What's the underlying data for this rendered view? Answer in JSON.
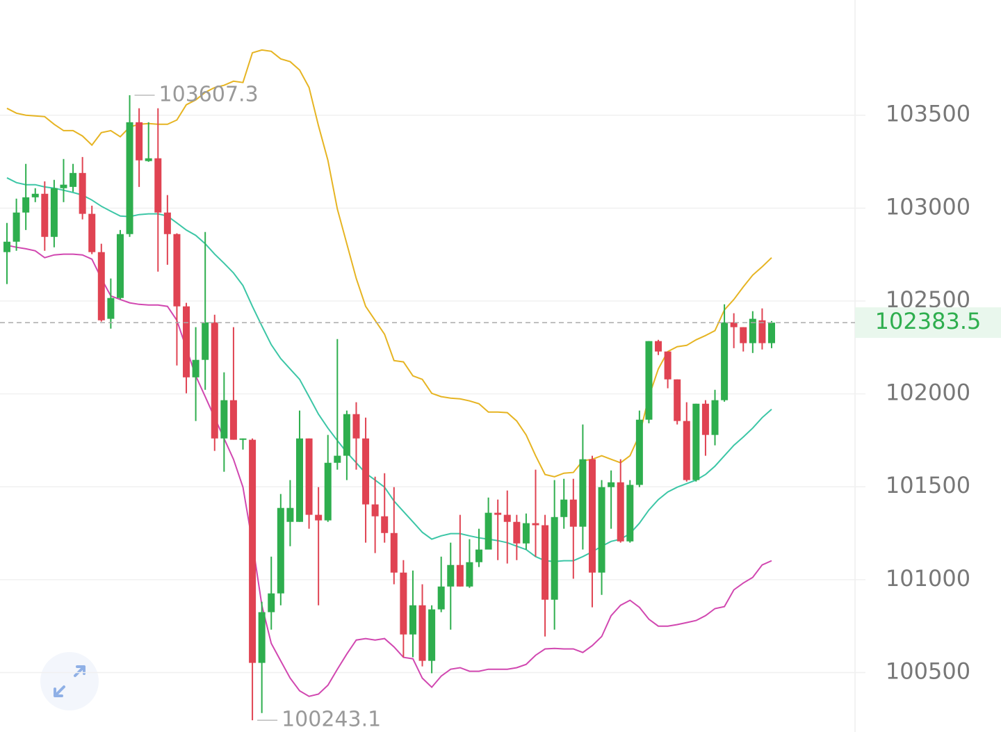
{
  "chart_data": {
    "type": "candlestick",
    "up_color": "#2eae4e",
    "down_color": "#e04352",
    "open": [
      102763,
      102819,
      102976,
      103058,
      103077,
      102845,
      103107,
      103114,
      103189,
      102969,
      102763,
      102404,
      102516,
      102860,
      103462,
      103253,
      103268,
      102976,
      102860,
      102471,
      102089,
      102183,
      102385,
      101760,
      101966,
      101753,
      101753,
      100552,
      100825,
      100926,
      101311,
      101311,
      101760,
      101349,
      101319,
      101629,
      101667,
      101891,
      101760,
      101405,
      101341,
      101251,
      101038,
      100705,
      100862,
      100563,
      100840,
      100963,
      101079,
      100963,
      101094,
      101162,
      101360,
      101349,
      101311,
      101195,
      101304,
      101293,
      100892,
      101337,
      101431,
      101285,
      101648,
      101038,
      101498,
      101524,
      101206,
      101510,
      101861,
      102284,
      102228,
      102078,
      101854,
      101536,
      101947,
      101779,
      101966,
      102385,
      102359,
      102273,
      102396,
      102273
    ],
    "high": [
      102920,
      103051,
      103238,
      103107,
      103144,
      103152,
      103264,
      103238,
      103275,
      103013,
      102808,
      102621,
      102882,
      103607.3,
      103537,
      103462,
      103537,
      103070,
      102864,
      102490,
      102359,
      102871,
      102426,
      102116,
      102359,
      101760,
      101760,
      100881,
      101124,
      101461,
      101536,
      101910,
      101760,
      101498,
      101779,
      102295,
      101910,
      101955,
      101872,
      101554,
      101573,
      101498,
      101105,
      101049,
      100975,
      100862,
      101124,
      101199,
      101349,
      101218,
      101274,
      101442,
      101431,
      101480,
      101349,
      101356,
      101592,
      101349,
      101536,
      101543,
      101543,
      101835,
      101667,
      101536,
      101588,
      101648,
      101536,
      101910,
      102284,
      102291,
      102228,
      102078,
      101955,
      101947,
      101966,
      102022,
      102482,
      102434,
      102359,
      102445,
      102460,
      102392
    ],
    "low": [
      102591,
      102770,
      102882,
      103032,
      102770,
      102789,
      103032,
      103088,
      102939,
      102752,
      102389,
      102351,
      102509,
      102845,
      103114,
      103249,
      102658,
      102695,
      102153,
      102003,
      101854,
      102022,
      101693,
      101581,
      101753,
      101700,
      100243.1,
      100282,
      100731,
      100862,
      101180,
      101311,
      101274,
      100862,
      101311,
      101592,
      101536,
      101592,
      101199,
      101143,
      101199,
      100975,
      100582,
      100582,
      100533,
      100496,
      100825,
      100731,
      100963,
      100956,
      101068,
      101162,
      101105,
      101087,
      101105,
      101162,
      101124,
      100694,
      100731,
      101274,
      101005,
      101162,
      100851,
      100918,
      101274,
      101199,
      101199,
      101498,
      101842,
      102209,
      102030,
      101835,
      101528,
      101528,
      101667,
      101723,
      101958,
      102246,
      102228,
      102220,
      102239,
      102246
    ],
    "close": [
      102819,
      102976,
      103058,
      103077,
      102845,
      103107,
      103126,
      103189,
      102969,
      102763,
      102396,
      102516,
      102860,
      103462,
      103257,
      103268,
      102976,
      102860,
      102471,
      102089,
      102183,
      102385,
      101760,
      101966,
      101753,
      101760,
      100552,
      100825,
      100926,
      101386,
      101386,
      101760,
      101349,
      101319,
      101629,
      101667,
      101891,
      101760,
      101405,
      101341,
      101251,
      101038,
      100705,
      100862,
      100563,
      100840,
      100963,
      101079,
      100963,
      101094,
      101162,
      101360,
      101349,
      101311,
      101195,
      101304,
      101293,
      100892,
      101337,
      101431,
      101285,
      101648,
      101038,
      101498,
      101524,
      101206,
      101510,
      101861,
      102284,
      102228,
      102078,
      101854,
      101536,
      101947,
      101779,
      101966,
      102385,
      102359,
      102273,
      102404,
      102273,
      102383.5
    ],
    "bands": [
      {
        "color": "#e6b422",
        "values": [
          103537,
          103511,
          103500,
          103496,
          103492,
          103451,
          103417,
          103417,
          103388,
          103339,
          103406,
          103417,
          103384,
          103436,
          103451,
          103455,
          103451,
          103451,
          103474,
          103556,
          103582,
          103623,
          103649,
          103661,
          103683,
          103676,
          103836,
          103851,
          103844,
          103803,
          103788,
          103743,
          103649,
          103444,
          103257,
          102995,
          102808,
          102621,
          102471,
          102396,
          102321,
          102179,
          102172,
          102097,
          102078,
          102003,
          101985,
          101977,
          101973,
          101962,
          101947,
          101902,
          101902,
          101899,
          101854,
          101779,
          101667,
          101566,
          101554,
          101573,
          101577,
          101640,
          101648,
          101667,
          101648,
          101629,
          101667,
          101779,
          101985,
          102134,
          102228,
          102254,
          102261,
          102291,
          102314,
          102340,
          102452,
          102508,
          102576,
          102639,
          102684,
          102733
        ]
      },
      {
        "color": "#3cc6a6",
        "values": [
          103163,
          103137,
          103126,
          103126,
          103114,
          103107,
          103096,
          103084,
          103070,
          103043,
          103010,
          102983,
          102957,
          102954,
          102965,
          102969,
          102969,
          102957,
          102920,
          102882,
          102853,
          102808,
          102752,
          102703,
          102651,
          102583,
          102471,
          102366,
          102265,
          102190,
          102134,
          102078,
          101985,
          101891,
          101816,
          101749,
          101685,
          101629,
          101573,
          101536,
          101498,
          101423,
          101367,
          101311,
          101255,
          101218,
          101236,
          101248,
          101248,
          101236,
          101225,
          101218,
          101210,
          101199,
          101180,
          101162,
          101124,
          101102,
          101098,
          101102,
          101102,
          101124,
          101150,
          101180,
          101206,
          101218,
          101248,
          101304,
          101375,
          101431,
          101472,
          101498,
          101517,
          101536,
          101566,
          101611,
          101667,
          101723,
          101768,
          101816,
          101872,
          101917
        ]
      },
      {
        "color": "#d147b0",
        "values": [
          102800,
          102789,
          102781,
          102770,
          102733,
          102748,
          102752,
          102752,
          102748,
          102725,
          102621,
          102527,
          102508,
          102490,
          102482,
          102478,
          102478,
          102471,
          102396,
          102246,
          102097,
          101985,
          101872,
          101760,
          101648,
          101498,
          101199,
          100862,
          100657,
          100563,
          100470,
          100402,
          100372,
          100384,
          100432,
          100518,
          100600,
          100675,
          100683,
          100675,
          100683,
          100638,
          100582,
          100574,
          100470,
          100421,
          100481,
          100518,
          100526,
          100507,
          100507,
          100518,
          100518,
          100518,
          100526,
          100544,
          100593,
          100627,
          100630,
          100627,
          100627,
          100608,
          100645,
          100694,
          100806,
          100862,
          100889,
          100851,
          100787,
          100750,
          100750,
          100758,
          100769,
          100780,
          100806,
          100844,
          100855,
          100945,
          100982,
          101012,
          101079,
          101102
        ]
      }
    ],
    "ylim": [
      100180,
      104120
    ],
    "yticks": [
      100500,
      101000,
      101500,
      102000,
      102500,
      103000,
      103500
    ],
    "grid": true
  }
}
